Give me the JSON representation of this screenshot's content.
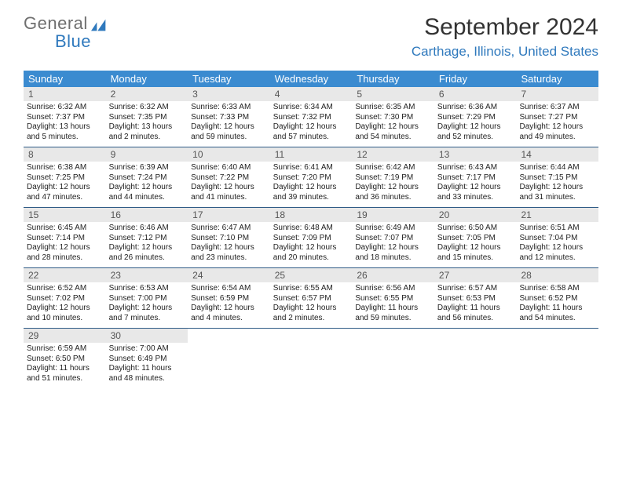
{
  "brand": {
    "line1": "General",
    "line2": "Blue",
    "icon_color": "#2f79bd"
  },
  "title": {
    "month": "September 2024",
    "location": "Carthage, Illinois, United States"
  },
  "colors": {
    "header_bg": "#3b8bd0",
    "header_text": "#ffffff",
    "daynum_bg": "#e8e8e8",
    "week_border": "#2f5b86",
    "brand_gray": "#6f6f6f",
    "brand_blue": "#2f79bd"
  },
  "day_headers": [
    "Sunday",
    "Monday",
    "Tuesday",
    "Wednesday",
    "Thursday",
    "Friday",
    "Saturday"
  ],
  "weeks": [
    [
      {
        "n": "1",
        "sunrise": "Sunrise: 6:32 AM",
        "sunset": "Sunset: 7:37 PM",
        "daylight": "Daylight: 13 hours and 5 minutes."
      },
      {
        "n": "2",
        "sunrise": "Sunrise: 6:32 AM",
        "sunset": "Sunset: 7:35 PM",
        "daylight": "Daylight: 13 hours and 2 minutes."
      },
      {
        "n": "3",
        "sunrise": "Sunrise: 6:33 AM",
        "sunset": "Sunset: 7:33 PM",
        "daylight": "Daylight: 12 hours and 59 minutes."
      },
      {
        "n": "4",
        "sunrise": "Sunrise: 6:34 AM",
        "sunset": "Sunset: 7:32 PM",
        "daylight": "Daylight: 12 hours and 57 minutes."
      },
      {
        "n": "5",
        "sunrise": "Sunrise: 6:35 AM",
        "sunset": "Sunset: 7:30 PM",
        "daylight": "Daylight: 12 hours and 54 minutes."
      },
      {
        "n": "6",
        "sunrise": "Sunrise: 6:36 AM",
        "sunset": "Sunset: 7:29 PM",
        "daylight": "Daylight: 12 hours and 52 minutes."
      },
      {
        "n": "7",
        "sunrise": "Sunrise: 6:37 AM",
        "sunset": "Sunset: 7:27 PM",
        "daylight": "Daylight: 12 hours and 49 minutes."
      }
    ],
    [
      {
        "n": "8",
        "sunrise": "Sunrise: 6:38 AM",
        "sunset": "Sunset: 7:25 PM",
        "daylight": "Daylight: 12 hours and 47 minutes."
      },
      {
        "n": "9",
        "sunrise": "Sunrise: 6:39 AM",
        "sunset": "Sunset: 7:24 PM",
        "daylight": "Daylight: 12 hours and 44 minutes."
      },
      {
        "n": "10",
        "sunrise": "Sunrise: 6:40 AM",
        "sunset": "Sunset: 7:22 PM",
        "daylight": "Daylight: 12 hours and 41 minutes."
      },
      {
        "n": "11",
        "sunrise": "Sunrise: 6:41 AM",
        "sunset": "Sunset: 7:20 PM",
        "daylight": "Daylight: 12 hours and 39 minutes."
      },
      {
        "n": "12",
        "sunrise": "Sunrise: 6:42 AM",
        "sunset": "Sunset: 7:19 PM",
        "daylight": "Daylight: 12 hours and 36 minutes."
      },
      {
        "n": "13",
        "sunrise": "Sunrise: 6:43 AM",
        "sunset": "Sunset: 7:17 PM",
        "daylight": "Daylight: 12 hours and 33 minutes."
      },
      {
        "n": "14",
        "sunrise": "Sunrise: 6:44 AM",
        "sunset": "Sunset: 7:15 PM",
        "daylight": "Daylight: 12 hours and 31 minutes."
      }
    ],
    [
      {
        "n": "15",
        "sunrise": "Sunrise: 6:45 AM",
        "sunset": "Sunset: 7:14 PM",
        "daylight": "Daylight: 12 hours and 28 minutes."
      },
      {
        "n": "16",
        "sunrise": "Sunrise: 6:46 AM",
        "sunset": "Sunset: 7:12 PM",
        "daylight": "Daylight: 12 hours and 26 minutes."
      },
      {
        "n": "17",
        "sunrise": "Sunrise: 6:47 AM",
        "sunset": "Sunset: 7:10 PM",
        "daylight": "Daylight: 12 hours and 23 minutes."
      },
      {
        "n": "18",
        "sunrise": "Sunrise: 6:48 AM",
        "sunset": "Sunset: 7:09 PM",
        "daylight": "Daylight: 12 hours and 20 minutes."
      },
      {
        "n": "19",
        "sunrise": "Sunrise: 6:49 AM",
        "sunset": "Sunset: 7:07 PM",
        "daylight": "Daylight: 12 hours and 18 minutes."
      },
      {
        "n": "20",
        "sunrise": "Sunrise: 6:50 AM",
        "sunset": "Sunset: 7:05 PM",
        "daylight": "Daylight: 12 hours and 15 minutes."
      },
      {
        "n": "21",
        "sunrise": "Sunrise: 6:51 AM",
        "sunset": "Sunset: 7:04 PM",
        "daylight": "Daylight: 12 hours and 12 minutes."
      }
    ],
    [
      {
        "n": "22",
        "sunrise": "Sunrise: 6:52 AM",
        "sunset": "Sunset: 7:02 PM",
        "daylight": "Daylight: 12 hours and 10 minutes."
      },
      {
        "n": "23",
        "sunrise": "Sunrise: 6:53 AM",
        "sunset": "Sunset: 7:00 PM",
        "daylight": "Daylight: 12 hours and 7 minutes."
      },
      {
        "n": "24",
        "sunrise": "Sunrise: 6:54 AM",
        "sunset": "Sunset: 6:59 PM",
        "daylight": "Daylight: 12 hours and 4 minutes."
      },
      {
        "n": "25",
        "sunrise": "Sunrise: 6:55 AM",
        "sunset": "Sunset: 6:57 PM",
        "daylight": "Daylight: 12 hours and 2 minutes."
      },
      {
        "n": "26",
        "sunrise": "Sunrise: 6:56 AM",
        "sunset": "Sunset: 6:55 PM",
        "daylight": "Daylight: 11 hours and 59 minutes."
      },
      {
        "n": "27",
        "sunrise": "Sunrise: 6:57 AM",
        "sunset": "Sunset: 6:53 PM",
        "daylight": "Daylight: 11 hours and 56 minutes."
      },
      {
        "n": "28",
        "sunrise": "Sunrise: 6:58 AM",
        "sunset": "Sunset: 6:52 PM",
        "daylight": "Daylight: 11 hours and 54 minutes."
      }
    ],
    [
      {
        "n": "29",
        "sunrise": "Sunrise: 6:59 AM",
        "sunset": "Sunset: 6:50 PM",
        "daylight": "Daylight: 11 hours and 51 minutes."
      },
      {
        "n": "30",
        "sunrise": "Sunrise: 7:00 AM",
        "sunset": "Sunset: 6:49 PM",
        "daylight": "Daylight: 11 hours and 48 minutes."
      },
      null,
      null,
      null,
      null,
      null
    ]
  ]
}
